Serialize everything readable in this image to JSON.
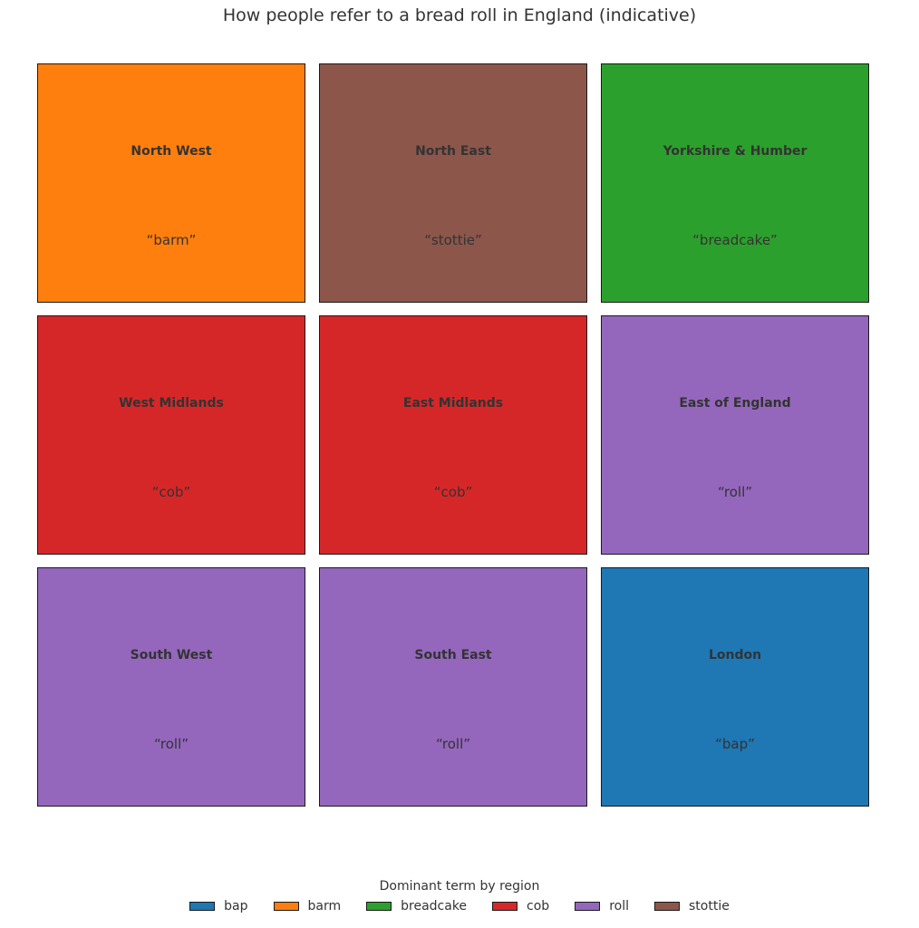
{
  "chart_data": {
    "type": "tile-map",
    "title": "How people refer to a bread roll in England (indicative)",
    "legend": {
      "title": "Dominant term by region",
      "placement": "bottom-center",
      "entries": [
        {
          "term": "bap",
          "color": "#1f77b4"
        },
        {
          "term": "barm",
          "color": "#ff7f0e"
        },
        {
          "term": "breadcake",
          "color": "#2ca02c"
        },
        {
          "term": "cob",
          "color": "#d62728"
        },
        {
          "term": "roll",
          "color": "#9467bd"
        },
        {
          "term": "stottie",
          "color": "#8c564b"
        }
      ]
    },
    "grid": {
      "rows": 3,
      "cols": 3
    },
    "tiles": [
      {
        "region": "North West",
        "term": "“barm”",
        "category": "barm",
        "row": 0,
        "col": 0
      },
      {
        "region": "North East",
        "term": "“stottie”",
        "category": "stottie",
        "row": 0,
        "col": 1
      },
      {
        "region": "Yorkshire & Humber",
        "term": "“breadcake”",
        "category": "breadcake",
        "row": 0,
        "col": 2
      },
      {
        "region": "West Midlands",
        "term": "“cob”",
        "category": "cob",
        "row": 1,
        "col": 0
      },
      {
        "region": "East Midlands",
        "term": "“cob”",
        "category": "cob",
        "row": 1,
        "col": 1
      },
      {
        "region": "East of England",
        "term": "“roll”",
        "category": "roll",
        "row": 1,
        "col": 2
      },
      {
        "region": "South West",
        "term": "“roll”",
        "category": "roll",
        "row": 2,
        "col": 0
      },
      {
        "region": "South East",
        "term": "“roll”",
        "category": "roll",
        "row": 2,
        "col": 1
      },
      {
        "region": "London",
        "term": "“bap”",
        "category": "bap",
        "row": 2,
        "col": 2
      }
    ]
  }
}
